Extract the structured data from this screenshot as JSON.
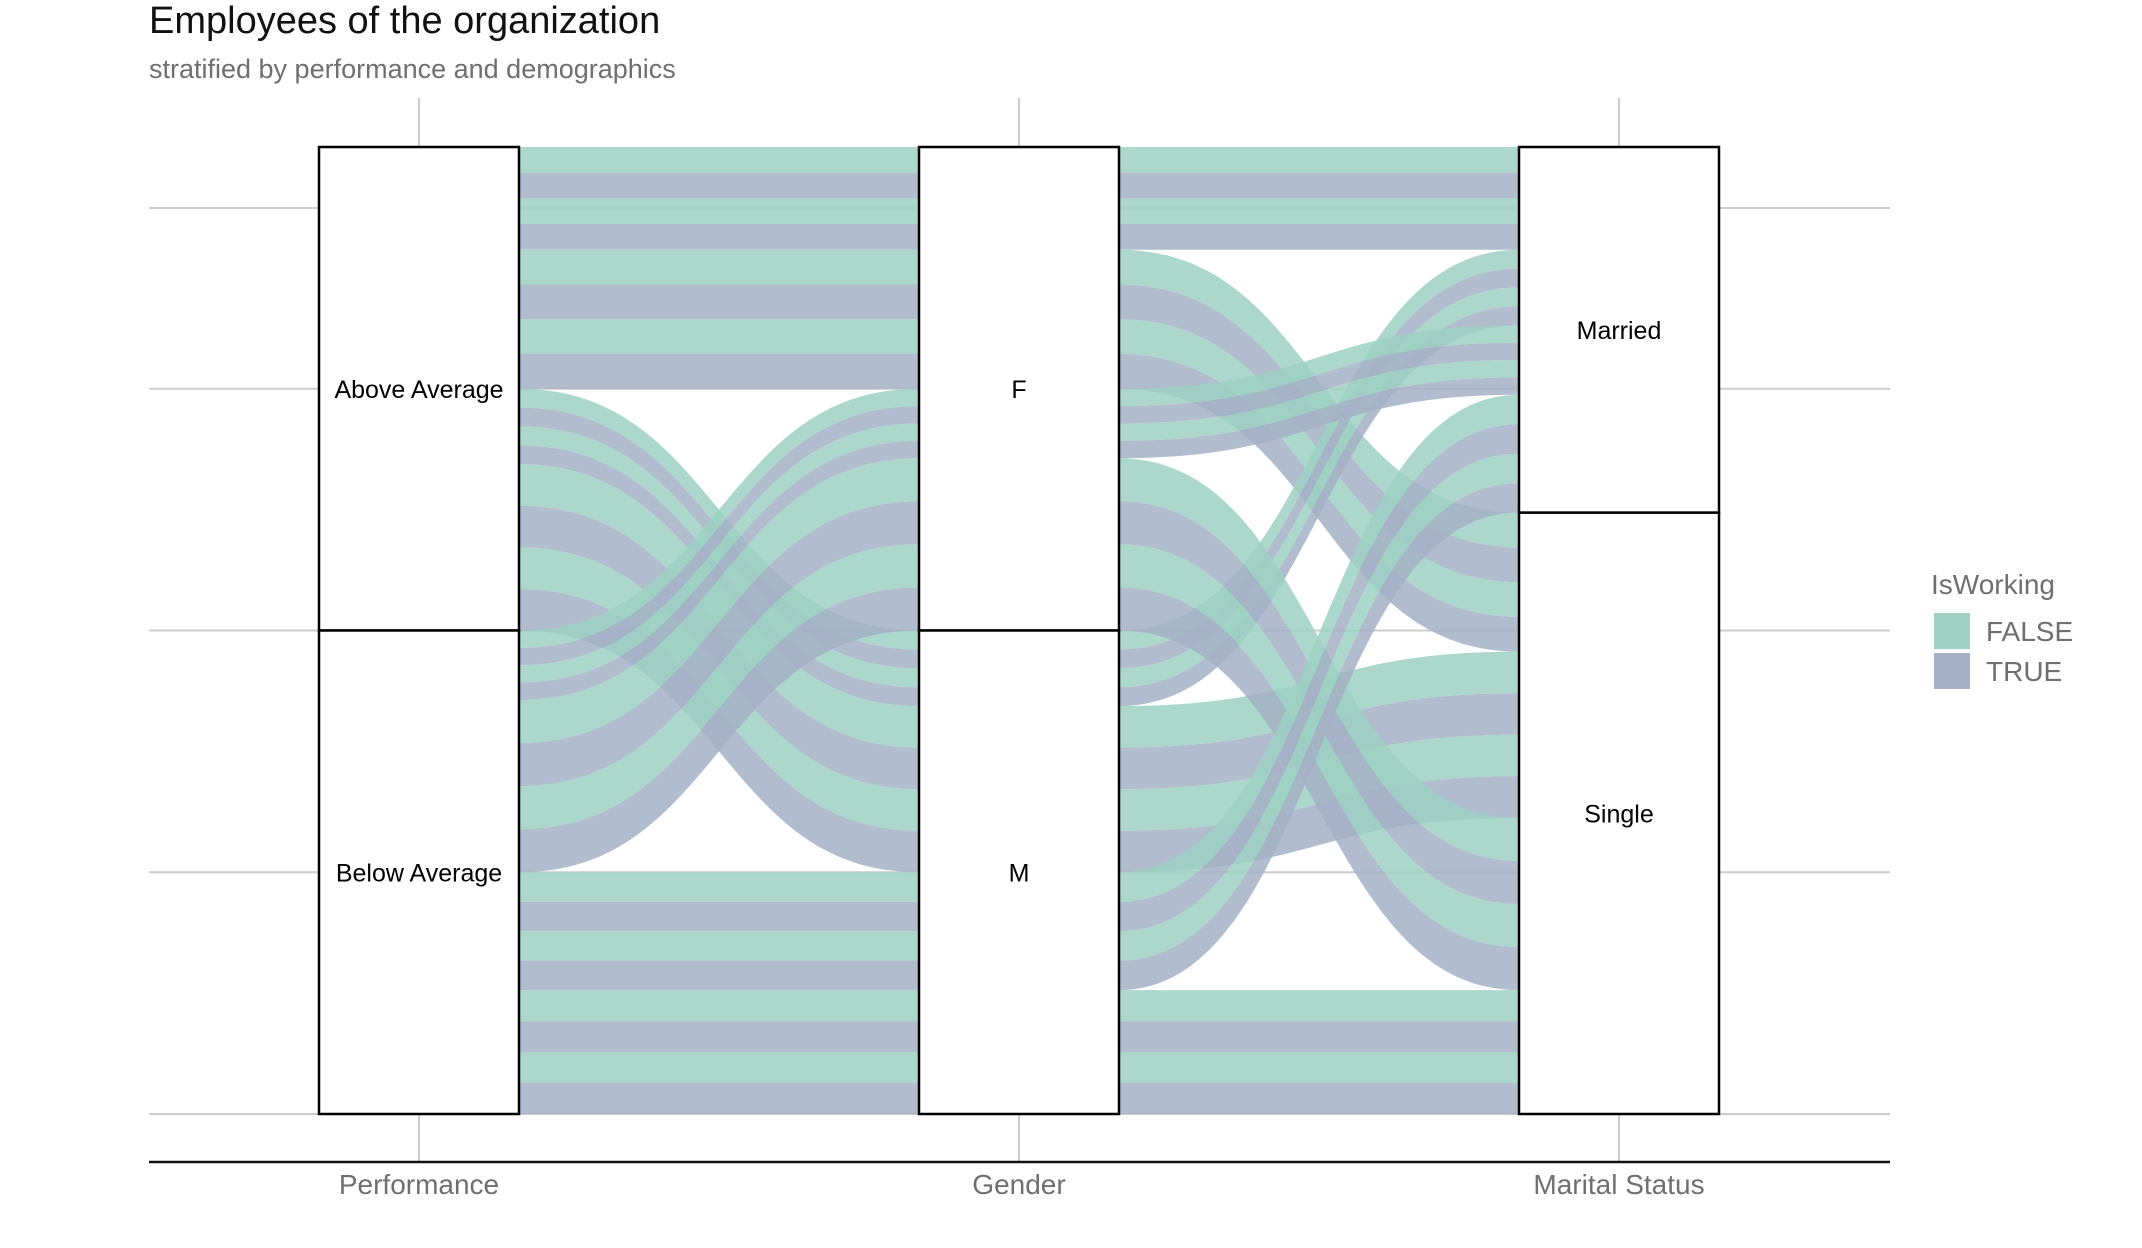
{
  "title": "Employees of the organization",
  "subtitle": "stratified by performance and demographics",
  "chart_data": {
    "type": "alluvial",
    "axes": [
      "Performance",
      "Gender",
      "Marital Status"
    ],
    "strata": [
      [
        "Above Average",
        "Below Average"
      ],
      [
        "F",
        "M"
      ],
      [
        "Married",
        "Single"
      ]
    ],
    "legend": {
      "title": "IsWorking",
      "entries": [
        {
          "label": "FALSE",
          "color": "#9dd1c2"
        },
        {
          "label": "TRUE",
          "color": "#a3b0c6"
        }
      ],
      "position": "right"
    },
    "colors": {
      "FALSE": "#9dd1c2",
      "TRUE": "#a3b0c6"
    },
    "y_range": [
      0,
      32
    ],
    "grid": true,
    "flows": [
      {
        "path": [
          "Above Average",
          "F",
          "Married"
        ],
        "segments": [
          "FALSE",
          "TRUE",
          "FALSE",
          "TRUE"
        ],
        "value": 3.4
      },
      {
        "path": [
          "Above Average",
          "F",
          "Single"
        ],
        "segments": [
          "FALSE",
          "TRUE",
          "FALSE",
          "TRUE"
        ],
        "value": 4.6
      },
      {
        "path": [
          "Above Average",
          "M",
          "Married"
        ],
        "segments": [
          "FALSE",
          "TRUE",
          "FALSE",
          "TRUE"
        ],
        "value": 2.5
      },
      {
        "path": [
          "Above Average",
          "M",
          "Single"
        ],
        "segments": [
          "FALSE",
          "TRUE",
          "FALSE",
          "TRUE"
        ],
        "value": 5.5
      },
      {
        "path": [
          "Below Average",
          "F",
          "Married"
        ],
        "segments": [
          "FALSE",
          "TRUE",
          "FALSE",
          "TRUE"
        ],
        "value": 2.3
      },
      {
        "path": [
          "Below Average",
          "F",
          "Single"
        ],
        "segments": [
          "FALSE",
          "TRUE",
          "FALSE",
          "TRUE"
        ],
        "value": 5.7
      },
      {
        "path": [
          "Below Average",
          "M",
          "Married"
        ],
        "segments": [
          "FALSE",
          "TRUE",
          "FALSE",
          "TRUE"
        ],
        "value": 3.9
      },
      {
        "path": [
          "Below Average",
          "M",
          "Single"
        ],
        "segments": [
          "FALSE",
          "TRUE",
          "FALSE",
          "TRUE"
        ],
        "value": 4.1
      }
    ]
  }
}
